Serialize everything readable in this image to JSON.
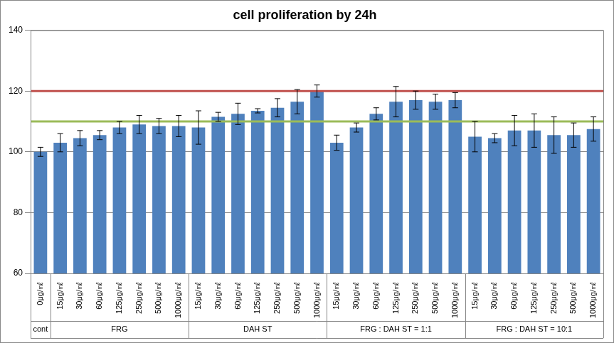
{
  "chart_data": {
    "type": "bar",
    "title": "cell proliferation by 24h",
    "categories": [
      "0μg/㎖",
      "15μg/㎖",
      "30μg/㎖",
      "60μg/㎖",
      "125μg/㎖",
      "250μg/㎖",
      "500μg/㎖",
      "1000μg/㎖",
      "15μg/㎖",
      "30μg/㎖",
      "60μg/㎖",
      "125μg/㎖",
      "250μg/㎖",
      "500μg/㎖",
      "1000μg/㎖",
      "15μg/㎖",
      "30μg/㎖",
      "60μg/㎖",
      "125μg/㎖",
      "250μg/㎖",
      "500μg/㎖",
      "1000μg/㎖",
      "15μg/㎖",
      "30μg/㎖",
      "60μg/㎖",
      "125μg/㎖",
      "250μg/㎖",
      "500μg/㎖",
      "1000μg/㎖"
    ],
    "groups": [
      {
        "label": "cont",
        "count": 1
      },
      {
        "label": "FRG",
        "count": 7
      },
      {
        "label": "DAH ST",
        "count": 7
      },
      {
        "label": "FRG : DAH ST = 1:1",
        "count": 7
      },
      {
        "label": "FRG : DAH ST = 10:1",
        "count": 7
      }
    ],
    "values": [
      100,
      103,
      104.5,
      105.5,
      108,
      109,
      108.5,
      108.5,
      108,
      111.5,
      112.5,
      113.5,
      114.5,
      116.5,
      120,
      103,
      108,
      112.5,
      116.5,
      117,
      116.5,
      117,
      105,
      104.5,
      107,
      107,
      105.5,
      105.5,
      107.5
    ],
    "errors": [
      1.5,
      3,
      2.5,
      1.5,
      2,
      3,
      2.5,
      3.5,
      5.5,
      1.5,
      3.5,
      0.7,
      3,
      4,
      2,
      2.5,
      1.5,
      2,
      5,
      3,
      2.5,
      2.5,
      5,
      1.5,
      5,
      5.5,
      6,
      4,
      4
    ],
    "color": "#4f81bd",
    "reference_lines": [
      {
        "value": 120,
        "color": "#c0504d"
      },
      {
        "value": 110,
        "color": "#9bbb59"
      }
    ],
    "ylim": [
      60,
      140
    ],
    "yticks": [
      60,
      80,
      100,
      120,
      140
    ],
    "grid": true
  }
}
